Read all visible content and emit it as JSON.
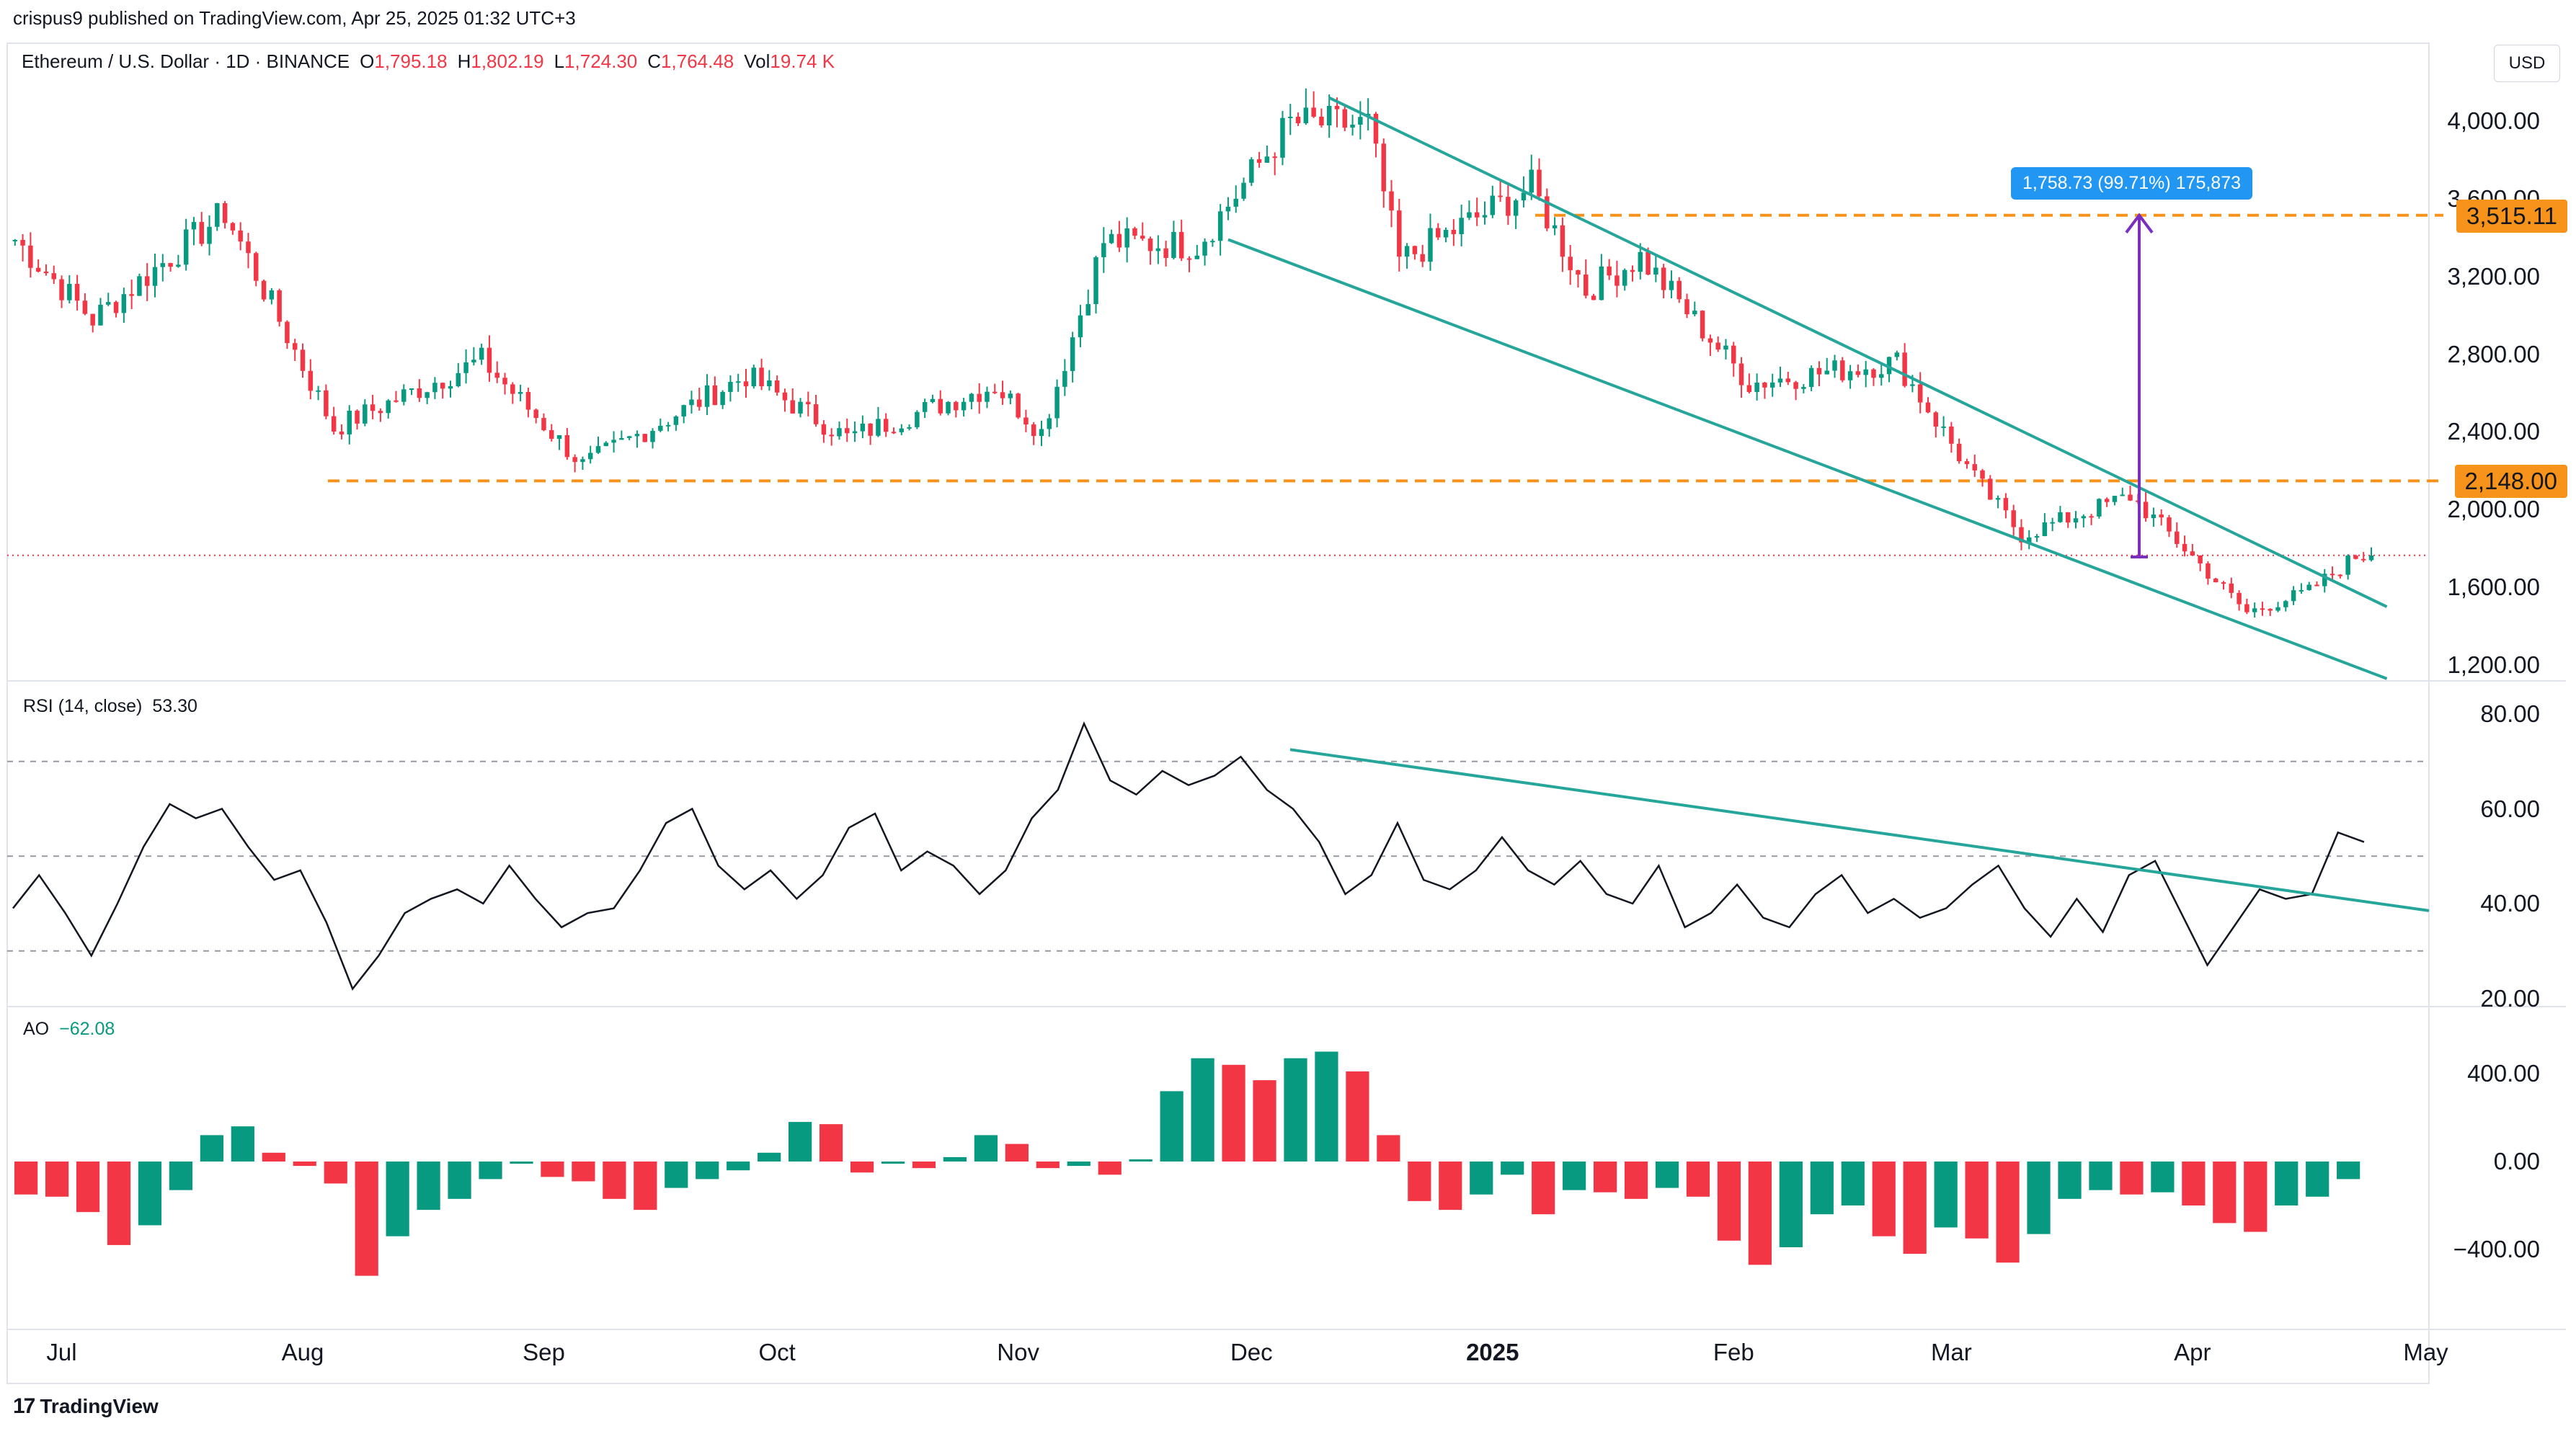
{
  "caption": "crispus9 published on TradingView.com, Apr 25, 2025 01:32 UTC+3",
  "legend": {
    "symbol": "Ethereum / U.S. Dollar · 1D · BINANCE",
    "open_label": "O",
    "open": "1,795.18",
    "high_label": "H",
    "high": "1,802.19",
    "low_label": "L",
    "low": "1,724.30",
    "close_label": "C",
    "close": "1,764.48",
    "vol_label": "Vol",
    "vol": "19.74 K"
  },
  "currency": "USD",
  "price_axis": [
    "4,000.00",
    "3,600.00",
    "3,200.00",
    "2,800.00",
    "2,400.00",
    "2,000.00",
    "1,600.00",
    "1,200.00"
  ],
  "price_tags": {
    "resistance": "3,515.11",
    "support": "2,148.00"
  },
  "measure_label": "1,758.73 (99.71%) 175,873",
  "rsi": {
    "label": "RSI (14, close)",
    "value": "53.30",
    "axis": [
      "80.00",
      "60.00",
      "40.00",
      "20.00"
    ]
  },
  "ao": {
    "label": "AO",
    "value": "−62.08",
    "axis": [
      "400.00",
      "0.00",
      "−400.00"
    ]
  },
  "time_axis": [
    "Jul",
    "Aug",
    "Sep",
    "Oct",
    "Nov",
    "Dec",
    "2025",
    "Feb",
    "Mar",
    "Apr",
    "May"
  ],
  "logo_text": "TradingView",
  "colors": {
    "up": "#089981",
    "down": "#f23645",
    "channel": "#26a69a",
    "level": "#f7931a",
    "measure": "#7b2fbe",
    "measure_tag": "#2196f3"
  },
  "chart_data": {
    "type": "candlestick",
    "title": "Ethereum / U.S. Dollar · 1D · BINANCE",
    "x_range": [
      "2024-06-24",
      "2025-04-24"
    ],
    "ylim": [
      1100,
      4250
    ],
    "key_points": [
      {
        "date": "2024-06-25",
        "close": 3390
      },
      {
        "date": "2024-07-05",
        "close": 2980
      },
      {
        "date": "2024-07-22",
        "close": 3530
      },
      {
        "date": "2024-08-05",
        "close": 2420
      },
      {
        "date": "2024-08-24",
        "close": 2770
      },
      {
        "date": "2024-09-06",
        "close": 2230
      },
      {
        "date": "2024-09-27",
        "close": 2690
      },
      {
        "date": "2024-10-10",
        "close": 2370
      },
      {
        "date": "2024-10-29",
        "close": 2640
      },
      {
        "date": "2024-11-04",
        "close": 2400
      },
      {
        "date": "2024-11-12",
        "close": 3380
      },
      {
        "date": "2024-11-24",
        "close": 3360
      },
      {
        "date": "2024-12-06",
        "close": 3990
      },
      {
        "date": "2024-12-16",
        "close": 3980
      },
      {
        "date": "2024-12-20",
        "close": 3280
      },
      {
        "date": "2025-01-06",
        "close": 3660
      },
      {
        "date": "2025-01-13",
        "close": 3130
      },
      {
        "date": "2025-01-20",
        "close": 3300
      },
      {
        "date": "2025-02-03",
        "close": 2650
      },
      {
        "date": "2025-02-22",
        "close": 2760
      },
      {
        "date": "2025-03-04",
        "close": 2160
      },
      {
        "date": "2025-03-10",
        "close": 1870
      },
      {
        "date": "2025-03-24",
        "close": 2070
      },
      {
        "date": "2025-03-31",
        "close": 1800
      },
      {
        "date": "2025-04-08",
        "close": 1470
      },
      {
        "date": "2025-04-16",
        "close": 1580
      },
      {
        "date": "2025-04-22",
        "close": 1760
      },
      {
        "date": "2025-04-24",
        "close": 1764.48
      }
    ],
    "levels": [
      3515.11,
      2148.0
    ],
    "channel_upper": [
      {
        "date": "2024-12-11",
        "price": 4120
      },
      {
        "date": "2025-04-26",
        "price": 1500
      }
    ],
    "channel_lower": [
      {
        "date": "2024-11-28",
        "price": 3390
      },
      {
        "date": "2025-04-26",
        "price": 1130
      }
    ],
    "measure": {
      "from": 1756.38,
      "to": 3515.11,
      "change": "1,758.73 (99.71%) 175,873"
    },
    "rsi_series": {
      "name": "RSI (14, close)",
      "last": 53.3,
      "ylim": [
        15,
        85
      ],
      "levels": [
        70,
        50,
        30
      ],
      "values": [
        39,
        46,
        38,
        29,
        40,
        52,
        61,
        58,
        60,
        52,
        45,
        47,
        36,
        22,
        29,
        38,
        41,
        43,
        40,
        48,
        41,
        35,
        38,
        39,
        47,
        57,
        60,
        48,
        43,
        47,
        41,
        46,
        56,
        59,
        47,
        51,
        48,
        42,
        47,
        58,
        64,
        78,
        66,
        63,
        68,
        65,
        67,
        71,
        64,
        60,
        53,
        42,
        46,
        57,
        45,
        43,
        47,
        54,
        47,
        44,
        49,
        42,
        40,
        48,
        35,
        38,
        44,
        37,
        35,
        42,
        46,
        38,
        41,
        37,
        39,
        44,
        48,
        39,
        33,
        41,
        34,
        46,
        49,
        38,
        27,
        35,
        43,
        41,
        42,
        55,
        53
      ]
    },
    "ao_series": {
      "name": "AO",
      "last": -62.08,
      "ylim": [
        -650,
        620
      ],
      "values": [
        -150,
        -160,
        -230,
        -380,
        -290,
        -130,
        120,
        160,
        40,
        -20,
        -100,
        -520,
        -340,
        -220,
        -170,
        -80,
        -10,
        -70,
        -90,
        -170,
        -220,
        -120,
        -80,
        -40,
        40,
        180,
        170,
        -50,
        -10,
        -30,
        20,
        120,
        80,
        -30,
        -20,
        -60,
        10,
        320,
        470,
        440,
        370,
        470,
        500,
        410,
        120,
        -180,
        -220,
        -150,
        -60,
        -240,
        -130,
        -140,
        -170,
        -120,
        -160,
        -360,
        -470,
        -390,
        -240,
        -200,
        -340,
        -420,
        -300,
        -350,
        -460,
        -330,
        -170,
        -130,
        -150,
        -140,
        -200,
        -280,
        -320,
        -200,
        -160,
        -80
      ]
    }
  }
}
